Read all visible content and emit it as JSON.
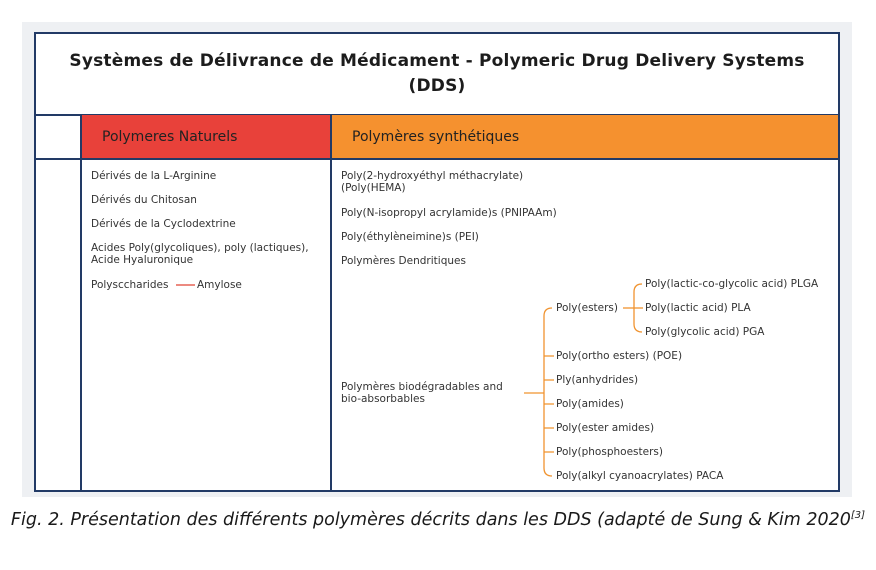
{
  "title": "Systèmes de Délivrance de Médicament - Polymeric Drug Delivery Systems (DDS)",
  "headers": {
    "natural": "Polymeres Naturels",
    "synthetic": "Polymères synthétiques"
  },
  "natural_items": [
    "Dérivés de la L-Arginine",
    "Dérivés du Chitosan",
    "Dérivés de la Cyclodextrine",
    "Acides Poly(glycoliques), poly (lactiques), Acide Hyaluronique"
  ],
  "polysaccharides": {
    "label": "Polysccharides",
    "child": "Amylose"
  },
  "synthetic_items": [
    "Poly(2-hydroxyéthyl méthacrylate) (Poly(HEMA)",
    "Poly(N-isopropyl acrylamide)s (PNIPAAm)",
    "Poly(éthylèneimine)s (PEI)",
    "Polymères Dendritiques"
  ],
  "biodegradable": {
    "label": "Polymères biodégradables and bio-absorbables",
    "children": [
      "Poly(esters)",
      "Poly(ortho esters) (POE)",
      "Ply(anhydrides)",
      "Poly(amides)",
      "Poly(ester amides)",
      "Poly(phosphoesters)",
      "Poly(alkyl cyanoacrylates) PACA"
    ],
    "esters_children": [
      "Poly(lactic-co-glycolic acid) PLGA",
      "Poly(lactic acid) PLA",
      "Poly(glycolic acid) PGA"
    ]
  },
  "caption": {
    "text": "Fig. 2. Présentation des différents polymères décrits dans les DDS (adapté de Sung & Kim 2020",
    "ref": "[3]"
  },
  "colors": {
    "border": "#223a66",
    "natural_header": "#e8413a",
    "synthetic_header": "#f5912f",
    "bracket": "#f0932f",
    "polysaccharide_line": "#e04535"
  }
}
